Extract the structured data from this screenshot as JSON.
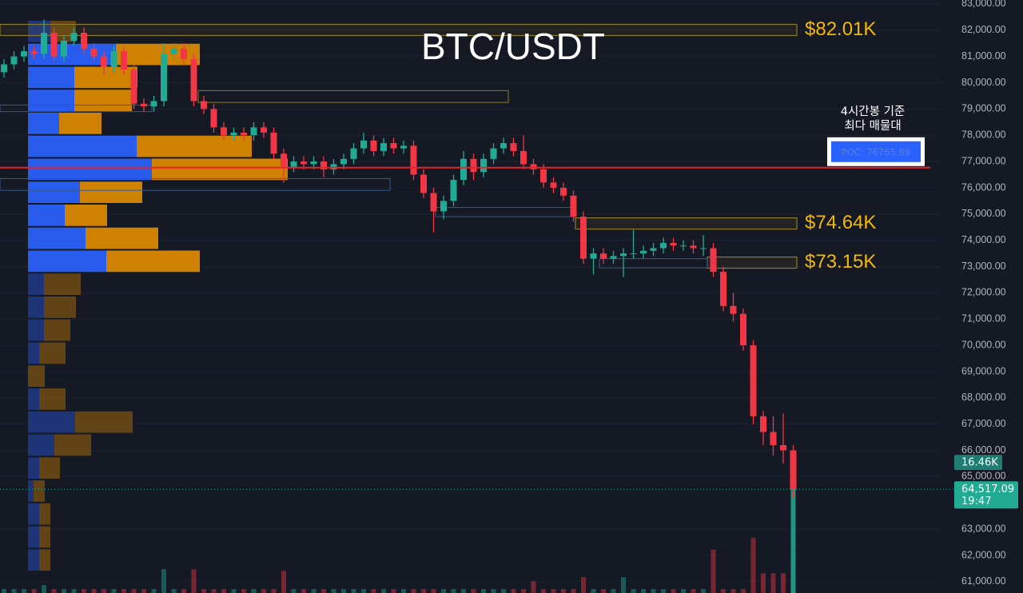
{
  "chart_data": {
    "type": "candlestick",
    "title": "BTC/USDT",
    "ylim": [
      60570,
      83150
    ],
    "yticks": [
      {
        "value": 61000,
        "label": "61,000.00"
      },
      {
        "value": 62000,
        "label": "62,000.00"
      },
      {
        "value": 63000,
        "label": "63,000.00"
      },
      {
        "value": 65000,
        "label": "65,000.00"
      },
      {
        "value": 66000,
        "label": "66,000.00"
      },
      {
        "value": 67000,
        "label": "67,000.00"
      },
      {
        "value": 68000,
        "label": "68,000.00"
      },
      {
        "value": 69000,
        "label": "69,000.00"
      },
      {
        "value": 70000,
        "label": "70,000.00"
      },
      {
        "value": 71000,
        "label": "71,000.00"
      },
      {
        "value": 72000,
        "label": "72,000.00"
      },
      {
        "value": 73000,
        "label": "73,000.00"
      },
      {
        "value": 74000,
        "label": "74,000.00"
      },
      {
        "value": 75000,
        "label": "75,000.00"
      },
      {
        "value": 76000,
        "label": "76,000.00"
      },
      {
        "value": 77000,
        "label": "77,000.00"
      },
      {
        "value": 78000,
        "label": "78,000.00"
      },
      {
        "value": 79000,
        "label": "79,000.00"
      },
      {
        "value": 80000,
        "label": "80,000.00"
      },
      {
        "value": 81000,
        "label": "81,000.00"
      },
      {
        "value": 82000,
        "label": "82,000.00"
      },
      {
        "value": 83000,
        "label": "83,000.00"
      }
    ],
    "up_color": "#22ab94",
    "down_color": "#f23645",
    "open": [
      80400,
      80700,
      81000,
      81200,
      81100,
      81900,
      81000,
      81600,
      81900,
      81300,
      81000,
      80600,
      81200,
      80500,
      79200,
      79100,
      79300,
      81100,
      81300,
      80900,
      79300,
      79000,
      78300,
      78000,
      78100,
      78000,
      78300,
      78100,
      77300,
      76800,
      77000,
      76900,
      77000,
      76700,
      76900,
      77100,
      77500,
      77800,
      77400,
      77700,
      77500,
      77600,
      76500,
      75800,
      75100,
      75500,
      76300,
      77100,
      76600,
      77100,
      77500,
      77700,
      77400,
      76900,
      76700,
      76200,
      76000,
      75700,
      74900,
      73300,
      73500,
      73300,
      73400,
      73500,
      73500,
      73600,
      73700,
      73900,
      73800,
      73800,
      73700,
      73700,
      72800,
      71500,
      71200,
      70000,
      67300,
      66700,
      66200,
      66000
    ],
    "high": [
      80900,
      81200,
      81400,
      81400,
      82400,
      82100,
      81800,
      82100,
      82100,
      81500,
      81200,
      81400,
      81400,
      80700,
      79400,
      79500,
      81500,
      81500,
      81500,
      81100,
      79500,
      79200,
      78500,
      78300,
      78300,
      78500,
      78500,
      78300,
      77500,
      77200,
      77200,
      77200,
      77200,
      77100,
      77300,
      77700,
      78100,
      78000,
      77900,
      77900,
      77800,
      77800,
      76700,
      76000,
      75700,
      76500,
      77400,
      77300,
      77300,
      77700,
      77900,
      77900,
      78000,
      77100,
      76900,
      76400,
      76200,
      75900,
      75100,
      73700,
      73700,
      73600,
      73700,
      74400,
      73800,
      73900,
      74100,
      74100,
      74000,
      74000,
      74200,
      73900,
      73000,
      72000,
      71400,
      70200,
      67500,
      67300,
      67400,
      66200
    ],
    "low": [
      80200,
      80500,
      80800,
      80900,
      80900,
      80800,
      80800,
      81400,
      81100,
      80800,
      80300,
      80400,
      80300,
      79000,
      78900,
      78900,
      79100,
      80900,
      80700,
      79100,
      78800,
      78100,
      77800,
      77800,
      77800,
      77800,
      77900,
      77100,
      76200,
      76600,
      76700,
      76700,
      76400,
      76500,
      76700,
      76900,
      77300,
      77200,
      77200,
      77300,
      77300,
      76300,
      75600,
      74300,
      74800,
      75300,
      76100,
      76300,
      76400,
      76900,
      77300,
      77200,
      76700,
      76500,
      76000,
      75800,
      75500,
      74700,
      73100,
      72700,
      73100,
      73100,
      72600,
      73300,
      73300,
      73400,
      73500,
      73600,
      73600,
      73500,
      73400,
      72600,
      71300,
      70900,
      69800,
      67000,
      66200,
      65800,
      65500,
      64200
    ],
    "close": [
      80700,
      81000,
      81200,
      81100,
      81900,
      81000,
      81600,
      81900,
      81300,
      81000,
      80600,
      81200,
      80500,
      79200,
      79100,
      79300,
      81100,
      81300,
      80900,
      79300,
      79000,
      78300,
      78000,
      78100,
      78000,
      78300,
      78100,
      77300,
      76800,
      77000,
      76900,
      77000,
      76700,
      76900,
      77100,
      77500,
      77800,
      77400,
      77700,
      77500,
      77600,
      76500,
      75800,
      75100,
      75500,
      76300,
      77100,
      76600,
      77100,
      77500,
      77700,
      77400,
      76900,
      76700,
      76200,
      76000,
      75700,
      74900,
      73300,
      73500,
      73300,
      73400,
      73500,
      73500,
      73600,
      73700,
      73900,
      73800,
      73800,
      73700,
      73700,
      72800,
      71500,
      71200,
      70000,
      67300,
      66700,
      66200,
      66000,
      64517.09
    ],
    "volume": [
      500,
      500,
      500,
      500,
      1000,
      500,
      500,
      500,
      500,
      500,
      500,
      500,
      500,
      500,
      500,
      500,
      3000,
      500,
      500,
      3000,
      500,
      500,
      500,
      500,
      500,
      500,
      500,
      500,
      2800,
      500,
      500,
      500,
      500,
      500,
      500,
      500,
      500,
      500,
      500,
      500,
      500,
      500,
      500,
      500,
      500,
      500,
      500,
      500,
      500,
      500,
      500,
      500,
      500,
      1500,
      500,
      500,
      500,
      500,
      2000,
      500,
      500,
      500,
      2000,
      500,
      500,
      500,
      500,
      500,
      500,
      500,
      500,
      5500,
      500,
      500,
      500,
      7000,
      2500,
      2500,
      2500,
      16460
    ],
    "volume_ylim": [
      0,
      75000
    ],
    "last_volume_label": "16.46K",
    "last_close_label": "64,517.09",
    "countdown": "19:47",
    "volume_profile": {
      "bins": [
        82390,
        81515,
        80640,
        79765,
        78890,
        78015,
        77140,
        76265,
        75390,
        74515,
        73640,
        72765,
        71890,
        71015,
        70140,
        69265,
        68390,
        67515,
        66640,
        65765,
        64890,
        64015,
        63140,
        62265,
        61390
      ],
      "buy": [
        28,
        110,
        58,
        58,
        39,
        136,
        155,
        65,
        46,
        72,
        98,
        20,
        20,
        20,
        14,
        0,
        14,
        59,
        33,
        14,
        7,
        14,
        14,
        14
      ],
      "sell": [
        32,
        105,
        79,
        72,
        53,
        144,
        170,
        78,
        53,
        91,
        117,
        46,
        40,
        33,
        33,
        21,
        33,
        72,
        46,
        26,
        14,
        14,
        14,
        14
      ],
      "value_area": [
        72765,
        81515
      ],
      "buy_color": "#2962ff",
      "sell_color": "#e08a00"
    },
    "levels": [
      {
        "label": "$82.01K",
        "value": 82010
      },
      {
        "label": "$74.64K",
        "value": 74640
      },
      {
        "label": "$73.15K",
        "value": 73150
      }
    ],
    "poc": {
      "label": "POC: 76765.89",
      "value": 76765.89,
      "note": [
        "4시간봉 기준",
        "최다 매물대"
      ],
      "color": "#e8212b"
    }
  }
}
